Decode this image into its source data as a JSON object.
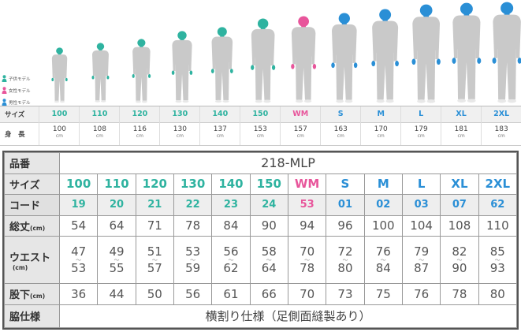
{
  "colors": {
    "kids": "#2fb3a0",
    "women": "#e8559b",
    "men": "#2a8fd6",
    "suit": "#c9c9c9"
  },
  "legend": [
    {
      "label": "子供モデル",
      "group": "kids"
    },
    {
      "label": "女性モデル",
      "group": "women"
    },
    {
      "label": "男性モデル",
      "group": "men"
    }
  ],
  "strip": {
    "size_label": "サイズ",
    "height_label": "身　長",
    "unit": "cm",
    "cols": [
      {
        "size": "100",
        "group": "kids",
        "height": "100"
      },
      {
        "size": "110",
        "group": "kids",
        "height": "108"
      },
      {
        "size": "120",
        "group": "kids",
        "height": "116"
      },
      {
        "size": "130",
        "group": "kids",
        "height": "130"
      },
      {
        "size": "140",
        "group": "kids",
        "height": "137"
      },
      {
        "size": "150",
        "group": "kids",
        "height": "153"
      },
      {
        "size": "WM",
        "group": "women",
        "height": "157"
      },
      {
        "size": "S",
        "group": "men",
        "height": "163"
      },
      {
        "size": "M",
        "group": "men",
        "height": "170"
      },
      {
        "size": "L",
        "group": "men",
        "height": "179"
      },
      {
        "size": "XL",
        "group": "men",
        "height": "181"
      },
      {
        "size": "2XL",
        "group": "men",
        "height": "183"
      }
    ]
  },
  "table": {
    "product_label": "品番",
    "model": "218-MLP",
    "size_label": "サイズ",
    "code_label": "コード",
    "length_label": "総丈",
    "waist_label": "ウエスト",
    "inseam_label": "股下",
    "cm": "(cm)",
    "side_label": "脇仕様",
    "side_value": "横割り仕様（足側面縫製あり）",
    "tilde": "〜",
    "cols": [
      {
        "size": "100",
        "group": "kids",
        "code": "19",
        "length": "54",
        "waist_min": "47",
        "waist_max": "53",
        "inseam": "36"
      },
      {
        "size": "110",
        "group": "kids",
        "code": "20",
        "length": "64",
        "waist_min": "49",
        "waist_max": "55",
        "inseam": "44"
      },
      {
        "size": "120",
        "group": "kids",
        "code": "21",
        "length": "71",
        "waist_min": "51",
        "waist_max": "57",
        "inseam": "50"
      },
      {
        "size": "130",
        "group": "kids",
        "code": "22",
        "length": "78",
        "waist_min": "53",
        "waist_max": "59",
        "inseam": "56"
      },
      {
        "size": "140",
        "group": "kids",
        "code": "23",
        "length": "84",
        "waist_min": "56",
        "waist_max": "62",
        "inseam": "61"
      },
      {
        "size": "150",
        "group": "kids",
        "code": "24",
        "length": "90",
        "waist_min": "58",
        "waist_max": "64",
        "inseam": "66"
      },
      {
        "size": "WM",
        "group": "women",
        "code": "53",
        "length": "94",
        "waist_min": "70",
        "waist_max": "78",
        "inseam": "70"
      },
      {
        "size": "S",
        "group": "men",
        "code": "01",
        "length": "96",
        "waist_min": "72",
        "waist_max": "80",
        "inseam": "73"
      },
      {
        "size": "M",
        "group": "men",
        "code": "02",
        "length": "100",
        "waist_min": "76",
        "waist_max": "84",
        "inseam": "75"
      },
      {
        "size": "L",
        "group": "men",
        "code": "03",
        "length": "104",
        "waist_min": "79",
        "waist_max": "87",
        "inseam": "76"
      },
      {
        "size": "XL",
        "group": "men",
        "code": "07",
        "length": "108",
        "waist_min": "82",
        "waist_max": "90",
        "inseam": "78"
      },
      {
        "size": "2XL",
        "group": "men",
        "code": "62",
        "length": "110",
        "waist_min": "85",
        "waist_max": "93",
        "inseam": "80"
      }
    ]
  }
}
